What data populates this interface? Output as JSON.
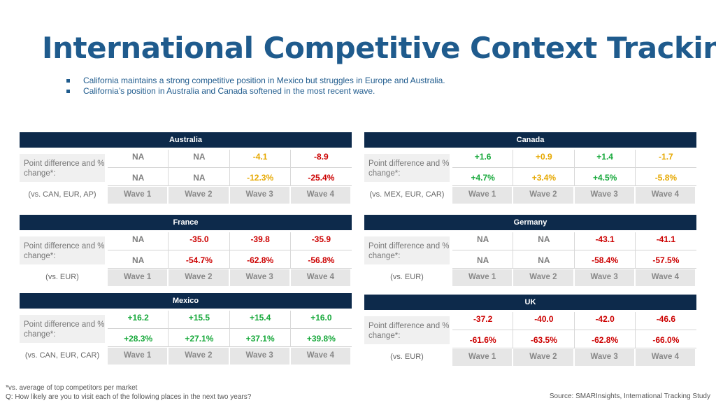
{
  "title": "International Competitive Context Tracking",
  "bullets": [
    "California maintains a strong competitive position in Mexico but struggles in Europe and Australia.",
    "California’s position in Australia and Canada softened in the most recent wave."
  ],
  "waves": [
    "Wave 1",
    "Wave 2",
    "Wave 3",
    "Wave 4"
  ],
  "colors": {
    "title": "#1f5b8d",
    "header": "#0d2a4b",
    "negative": "#cc0000",
    "positive": "#16a83a",
    "neutral": "#e6a800",
    "na": "#7f7f7f"
  },
  "panels": [
    {
      "name": "Australia",
      "label": "Point difference and % change*:",
      "vs": "(vs. CAN, EUR, AP)",
      "points": [
        "NA",
        "NA",
        "-4.1",
        "-8.9"
      ],
      "percents": [
        "NA",
        "NA",
        "-12.3%",
        "-25.4%"
      ],
      "point_status": [
        "na",
        "na",
        "mid",
        "neg"
      ],
      "percent_status": [
        "na",
        "na",
        "mid",
        "neg"
      ]
    },
    {
      "name": "Canada",
      "label": "Point difference and % change*:",
      "vs": "(vs. MEX, EUR, CAR)",
      "points": [
        "+1.6",
        "+0.9",
        "+1.4",
        "-1.7"
      ],
      "percents": [
        "+4.7%",
        "+3.4%",
        "+4.5%",
        "-5.8%"
      ],
      "point_status": [
        "pos",
        "mid",
        "pos",
        "mid"
      ],
      "percent_status": [
        "pos",
        "mid",
        "pos",
        "mid"
      ]
    },
    {
      "name": "France",
      "label": "Point difference and % change*:",
      "vs": "(vs. EUR)",
      "points": [
        "NA",
        "-35.0",
        "-39.8",
        "-35.9"
      ],
      "percents": [
        "NA",
        "-54.7%",
        "-62.8%",
        "-56.8%"
      ],
      "point_status": [
        "na",
        "neg",
        "neg",
        "neg"
      ],
      "percent_status": [
        "na",
        "neg",
        "neg",
        "neg"
      ]
    },
    {
      "name": "Germany",
      "label": "Point difference and % change*:",
      "vs": "(vs. EUR)",
      "points": [
        "NA",
        "NA",
        "-43.1",
        "-41.1"
      ],
      "percents": [
        "NA",
        "NA",
        "-58.4%",
        "-57.5%"
      ],
      "point_status": [
        "na",
        "na",
        "neg",
        "neg"
      ],
      "percent_status": [
        "na",
        "na",
        "neg",
        "neg"
      ]
    },
    {
      "name": "Mexico",
      "label": "Point difference and % change*:",
      "vs": "(vs. CAN, EUR, CAR)",
      "points": [
        "+16.2",
        "+15.5",
        "+15.4",
        "+16.0"
      ],
      "percents": [
        "+28.3%",
        "+27.1%",
        "+37.1%",
        "+39.8%"
      ],
      "point_status": [
        "pos",
        "pos",
        "pos",
        "pos"
      ],
      "percent_status": [
        "pos",
        "pos",
        "pos",
        "pos"
      ]
    },
    {
      "name": "UK",
      "label": "Point difference and % change*:",
      "vs": "(vs. EUR)",
      "points": [
        "-37.2",
        "-40.0",
        "-42.0",
        "-46.6"
      ],
      "percents": [
        "-61.6%",
        "-63.5%",
        "-62.8%",
        "-66.0%"
      ],
      "point_status": [
        "neg",
        "neg",
        "neg",
        "neg"
      ],
      "percent_status": [
        "neg",
        "neg",
        "neg",
        "neg"
      ]
    }
  ],
  "footnote": "*vs. average of top competitors per market",
  "question": "Q: How likely are you to visit each of the following places in the next two years?",
  "source": "Source: SMARInsights, International Tracking Study"
}
